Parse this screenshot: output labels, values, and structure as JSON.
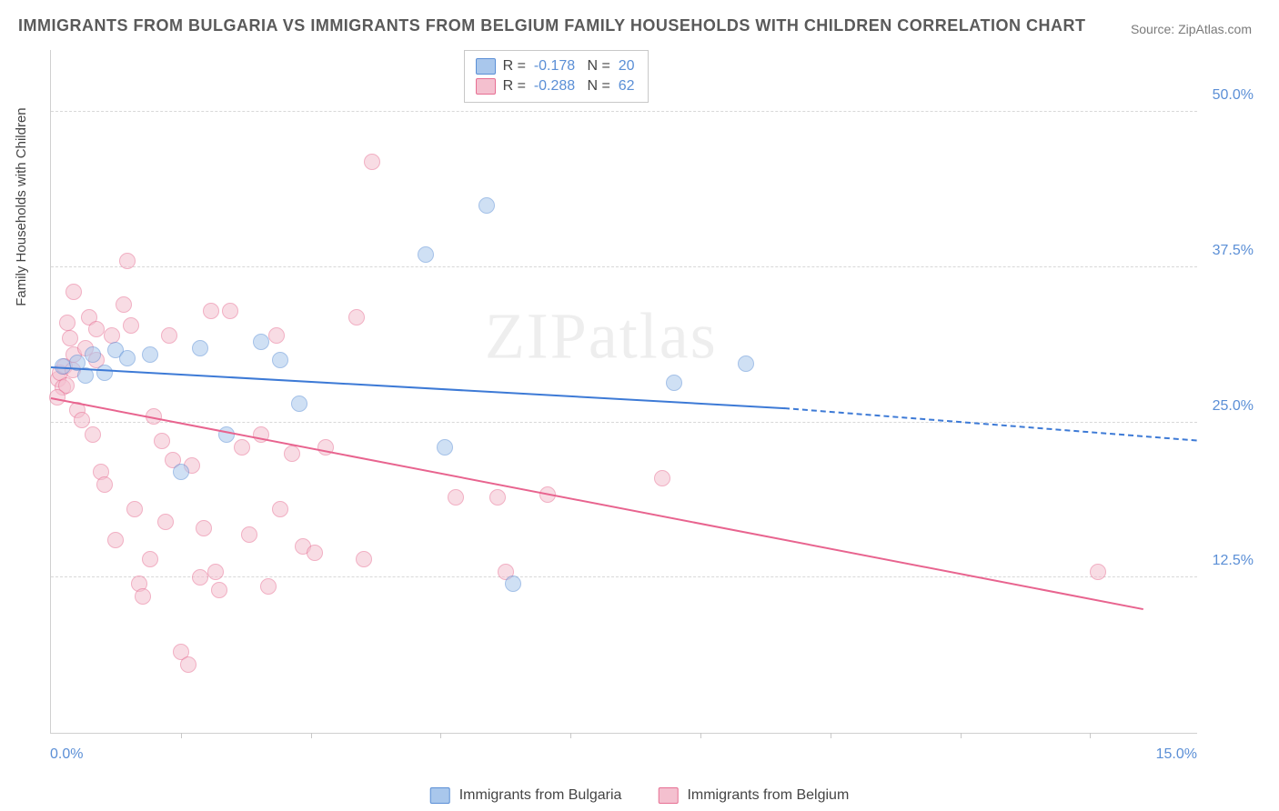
{
  "title": "IMMIGRANTS FROM BULGARIA VS IMMIGRANTS FROM BELGIUM FAMILY HOUSEHOLDS WITH CHILDREN CORRELATION CHART",
  "source_label": "Source: ZipAtlas.com",
  "watermark": "ZIPatlas",
  "y_axis_title": "Family Households with Children",
  "chart": {
    "type": "scatter",
    "xlim": [
      0,
      15
    ],
    "ylim": [
      0,
      55
    ],
    "x_ticks": [
      0,
      15
    ],
    "x_tick_labels": [
      "0.0%",
      "15.0%"
    ],
    "x_minor_ticks": [
      1.7,
      3.4,
      5.1,
      6.8,
      8.5,
      10.2,
      11.9,
      13.6
    ],
    "y_ticks": [
      12.5,
      25,
      37.5,
      50
    ],
    "y_tick_labels": [
      "12.5%",
      "25.0%",
      "37.5%",
      "50.0%"
    ],
    "background_color": "#ffffff",
    "grid_color": "#d8d8d8",
    "point_radius": 9,
    "point_opacity": 0.55,
    "series": [
      {
        "name": "Immigrants from Bulgaria",
        "color_fill": "#a9c7ec",
        "color_stroke": "#5b8fd6",
        "trend_color": "#3d7ad6",
        "R": "-0.178",
        "N": "20",
        "trend": {
          "x1": 0,
          "y1": 29.5,
          "x2_solid": 9.6,
          "y2_solid": 26.2,
          "x2_dash": 15,
          "y2_dash": 23.6
        },
        "points": [
          {
            "x": 0.15,
            "y": 29.5
          },
          {
            "x": 0.35,
            "y": 29.8
          },
          {
            "x": 0.45,
            "y": 28.8
          },
          {
            "x": 0.85,
            "y": 30.8
          },
          {
            "x": 1.0,
            "y": 30.2
          },
          {
            "x": 1.7,
            "y": 21.0
          },
          {
            "x": 1.95,
            "y": 31.0
          },
          {
            "x": 2.3,
            "y": 24.0
          },
          {
            "x": 2.75,
            "y": 31.5
          },
          {
            "x": 3.0,
            "y": 30.0
          },
          {
            "x": 3.25,
            "y": 26.5
          },
          {
            "x": 4.9,
            "y": 38.5
          },
          {
            "x": 5.15,
            "y": 23.0
          },
          {
            "x": 5.7,
            "y": 42.5
          },
          {
            "x": 6.05,
            "y": 12.0
          },
          {
            "x": 8.15,
            "y": 28.2
          },
          {
            "x": 9.1,
            "y": 29.7
          },
          {
            "x": 0.55,
            "y": 30.5
          },
          {
            "x": 0.7,
            "y": 29.0
          },
          {
            "x": 1.3,
            "y": 30.5
          }
        ]
      },
      {
        "name": "Immigrants from Belgium",
        "color_fill": "#f4c0cf",
        "color_stroke": "#e76f93",
        "trend_color": "#e8648f",
        "R": "-0.288",
        "N": "62",
        "trend": {
          "x1": 0,
          "y1": 27.0,
          "x2_solid": 14.3,
          "y2_solid": 10.0,
          "x2_dash": 14.3,
          "y2_dash": 10.0
        },
        "points": [
          {
            "x": 0.1,
            "y": 28.5
          },
          {
            "x": 0.12,
            "y": 29.0
          },
          {
            "x": 0.15,
            "y": 27.8
          },
          {
            "x": 0.18,
            "y": 29.5
          },
          {
            "x": 0.2,
            "y": 28.0
          },
          {
            "x": 0.22,
            "y": 33.0
          },
          {
            "x": 0.25,
            "y": 31.8
          },
          {
            "x": 0.3,
            "y": 30.5
          },
          {
            "x": 0.3,
            "y": 35.5
          },
          {
            "x": 0.35,
            "y": 26.0
          },
          {
            "x": 0.4,
            "y": 25.2
          },
          {
            "x": 0.45,
            "y": 31.0
          },
          {
            "x": 0.5,
            "y": 33.5
          },
          {
            "x": 0.55,
            "y": 24.0
          },
          {
            "x": 0.6,
            "y": 32.5
          },
          {
            "x": 0.65,
            "y": 21.0
          },
          {
            "x": 0.7,
            "y": 20.0
          },
          {
            "x": 0.8,
            "y": 32.0
          },
          {
            "x": 0.85,
            "y": 15.5
          },
          {
            "x": 0.95,
            "y": 34.5
          },
          {
            "x": 1.0,
            "y": 38.0
          },
          {
            "x": 1.1,
            "y": 18.0
          },
          {
            "x": 1.15,
            "y": 12.0
          },
          {
            "x": 1.2,
            "y": 11.0
          },
          {
            "x": 1.3,
            "y": 14.0
          },
          {
            "x": 1.35,
            "y": 25.5
          },
          {
            "x": 1.45,
            "y": 23.5
          },
          {
            "x": 1.5,
            "y": 17.0
          },
          {
            "x": 1.6,
            "y": 22.0
          },
          {
            "x": 1.7,
            "y": 6.5
          },
          {
            "x": 1.8,
            "y": 5.5
          },
          {
            "x": 1.85,
            "y": 21.5
          },
          {
            "x": 1.95,
            "y": 12.5
          },
          {
            "x": 2.0,
            "y": 16.5
          },
          {
            "x": 2.1,
            "y": 34.0
          },
          {
            "x": 2.15,
            "y": 13.0
          },
          {
            "x": 2.2,
            "y": 11.5
          },
          {
            "x": 2.35,
            "y": 34.0
          },
          {
            "x": 2.5,
            "y": 23.0
          },
          {
            "x": 2.6,
            "y": 16.0
          },
          {
            "x": 2.75,
            "y": 24.0
          },
          {
            "x": 2.85,
            "y": 11.8
          },
          {
            "x": 2.95,
            "y": 32.0
          },
          {
            "x": 3.0,
            "y": 18.0
          },
          {
            "x": 3.15,
            "y": 22.5
          },
          {
            "x": 3.3,
            "y": 15.0
          },
          {
            "x": 3.45,
            "y": 14.5
          },
          {
            "x": 3.6,
            "y": 23.0
          },
          {
            "x": 4.0,
            "y": 33.5
          },
          {
            "x": 4.1,
            "y": 14.0
          },
          {
            "x": 4.2,
            "y": 46.0
          },
          {
            "x": 5.3,
            "y": 19.0
          },
          {
            "x": 5.85,
            "y": 19.0
          },
          {
            "x": 5.95,
            "y": 13.0
          },
          {
            "x": 6.5,
            "y": 19.2
          },
          {
            "x": 8.0,
            "y": 20.5
          },
          {
            "x": 13.7,
            "y": 13.0
          },
          {
            "x": 0.28,
            "y": 29.2
          },
          {
            "x": 0.6,
            "y": 30.0
          },
          {
            "x": 1.05,
            "y": 32.8
          },
          {
            "x": 1.55,
            "y": 32.0
          },
          {
            "x": 0.08,
            "y": 27.0
          }
        ]
      }
    ]
  },
  "legend_top": {
    "rows": [
      {
        "swatch": 0,
        "r_label": "R =",
        "n_label": "N ="
      },
      {
        "swatch": 1,
        "r_label": "R =",
        "n_label": "N ="
      }
    ]
  }
}
